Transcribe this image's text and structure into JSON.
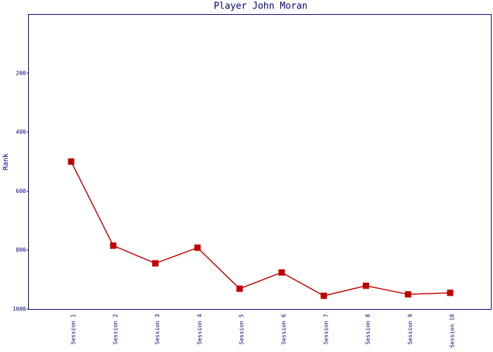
{
  "chart_data": {
    "type": "line",
    "title": "Player John Moran",
    "y_label": "Rank",
    "categories": [
      "Session 1",
      "Session 2",
      "Session 3",
      "Session 4",
      "Session 5",
      "Session 6",
      "Session 7",
      "Session 8",
      "Session 9",
      "Session 10"
    ],
    "values": [
      500,
      785,
      845,
      792,
      931,
      876,
      955,
      921,
      950,
      945
    ],
    "color": "#c00000",
    "ylim": [
      1000,
      0
    ],
    "yticks": [
      200,
      400,
      600,
      800,
      1000
    ],
    "grid": false
  }
}
